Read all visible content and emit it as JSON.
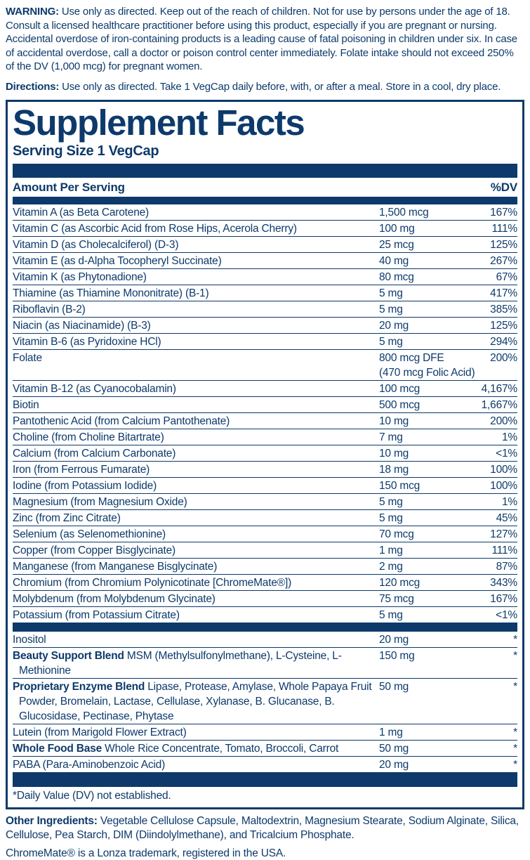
{
  "colors": {
    "navy": "#0d3a6b"
  },
  "warning": {
    "label": "WARNING:",
    "text": "Use only as directed.  Keep out of the reach of children. Not for use by persons under the age of 18.  Consult a licensed healthcare practitioner before using this product, especially if you are pregnant or nursing.  Accidental overdose of iron-containing products is a leading cause of fatal poisoning in children under six.  In case of accidental overdose, call a doctor or poison control center immediately. Folate intake should not exceed 250% of the DV (1,000 mcg) for pregnant women."
  },
  "directions": {
    "label": "Directions:",
    "text": "Use only as directed. Take 1 VegCap daily before, with, or after a meal. Store in a cool, dry place."
  },
  "supplement_facts": {
    "title": "Supplement Facts",
    "serving_size": "Serving Size 1 VegCap",
    "header": {
      "amount": "Amount Per Serving",
      "dv": "%DV"
    },
    "rows": [
      {
        "name": "Vitamin A (as Beta Carotene)",
        "amount": "1,500 mcg",
        "dv": "167%"
      },
      {
        "name": "Vitamin C (as Ascorbic Acid from Rose Hips, Acerola Cherry)",
        "amount": "100 mg",
        "dv": "111%"
      },
      {
        "name": "Vitamin D (as Cholecalciferol) (D-3)",
        "amount": "25 mcg",
        "dv": "125%"
      },
      {
        "name": "Vitamin E (as d-Alpha Tocopheryl Succinate)",
        "amount": "40 mg",
        "dv": "267%"
      },
      {
        "name": "Vitamin K (as Phytonadione)",
        "amount": "80 mcg",
        "dv": "67%"
      },
      {
        "name": "Thiamine (as Thiamine Mononitrate) (B-1)",
        "amount": "5 mg",
        "dv": "417%"
      },
      {
        "name": "Riboflavin (B-2)",
        "amount": "5 mg",
        "dv": "385%"
      },
      {
        "name": "Niacin (as Niacinamide) (B-3)",
        "amount": "20 mg",
        "dv": "125%"
      },
      {
        "name": "Vitamin B-6 (as Pyridoxine HCl)",
        "amount": "5 mg",
        "dv": "294%"
      },
      {
        "name": "Folate",
        "amount": "800 mcg DFE",
        "amount2": "(470 mcg Folic Acid)",
        "dv": "200%"
      },
      {
        "name": "Vitamin B-12 (as Cyanocobalamin)",
        "amount": "100 mcg",
        "dv": "4,167%"
      },
      {
        "name": "Biotin",
        "amount": "500 mcg",
        "dv": "1,667%"
      },
      {
        "name": "Pantothenic Acid (from Calcium Pantothenate)",
        "amount": "10 mg",
        "dv": "200%"
      },
      {
        "name": "Choline (from Choline Bitartrate)",
        "amount": "7 mg",
        "dv": "1%"
      },
      {
        "name": "Calcium (from Calcium Carbonate)",
        "amount": "10 mg",
        "dv": "<1%"
      },
      {
        "name": "Iron (from Ferrous Fumarate)",
        "amount": "18 mg",
        "dv": "100%"
      },
      {
        "name": "Iodine (from Potassium Iodide)",
        "amount": "150 mcg",
        "dv": "100%"
      },
      {
        "name": "Magnesium (from Magnesium Oxide)",
        "amount": "5 mg",
        "dv": "1%"
      },
      {
        "name": "Zinc (from Zinc Citrate)",
        "amount": "5 mg",
        "dv": "45%"
      },
      {
        "name": "Selenium (as Selenomethionine)",
        "amount": "70 mcg",
        "dv": "127%"
      },
      {
        "name": "Copper (from Copper Bisglycinate)",
        "amount": "1 mg",
        "dv": "111%"
      },
      {
        "name": "Manganese (from Manganese Bisglycinate)",
        "amount": "2 mg",
        "dv": "87%"
      },
      {
        "name": "Chromium (from Chromium Polynicotinate [ChromeMate®])",
        "amount": "120 mcg",
        "dv": "343%"
      },
      {
        "name": "Molybdenum (from Molybdenum Glycinate)",
        "amount": "75 mcg",
        "dv": "167%"
      },
      {
        "name": "Potassium (from Potassium Citrate)",
        "amount": "5 mg",
        "dv": "<1%"
      }
    ],
    "extra_rows": [
      {
        "name": "Inositol",
        "amount": "20 mg",
        "dv": "*"
      },
      {
        "bold": "Beauty Support Blend",
        "name": "MSM (Methylsulfonylmethane), L-Cysteine, L-Methionine",
        "amount": "150 mg",
        "dv": "*"
      },
      {
        "bold": "Proprietary Enzyme Blend",
        "name": "Lipase, Protease, Amylase, Whole Papaya Fruit Powder, Bromelain, Lactase, Cellulase, Xylanase, B. Glucanase, B. Glucosidase, Pectinase, Phytase",
        "amount": "50 mg",
        "dv": "*"
      },
      {
        "name": "Lutein (from Marigold Flower Extract)",
        "amount": "1 mg",
        "dv": "*"
      },
      {
        "bold": "Whole Food Base",
        "name": "Whole Rice Concentrate, Tomato, Broccoli, Carrot",
        "amount": "50 mg",
        "dv": "*"
      },
      {
        "name": "PABA (Para-Aminobenzoic Acid)",
        "amount": "20 mg",
        "dv": "*"
      }
    ],
    "footnote": "*Daily Value (DV) not established."
  },
  "other_ingredients": {
    "label": "Other Ingredients:",
    "text": "Vegetable Cellulose Capsule, Maltodextrin, Magnesium Stearate, Sodium Alginate, Silica, Cellulose, Pea Starch, DIM (Diindolylmethane), and Tricalcium Phosphate."
  },
  "trademark_note": "ChromeMate® is a Lonza trademark, registered in the USA."
}
